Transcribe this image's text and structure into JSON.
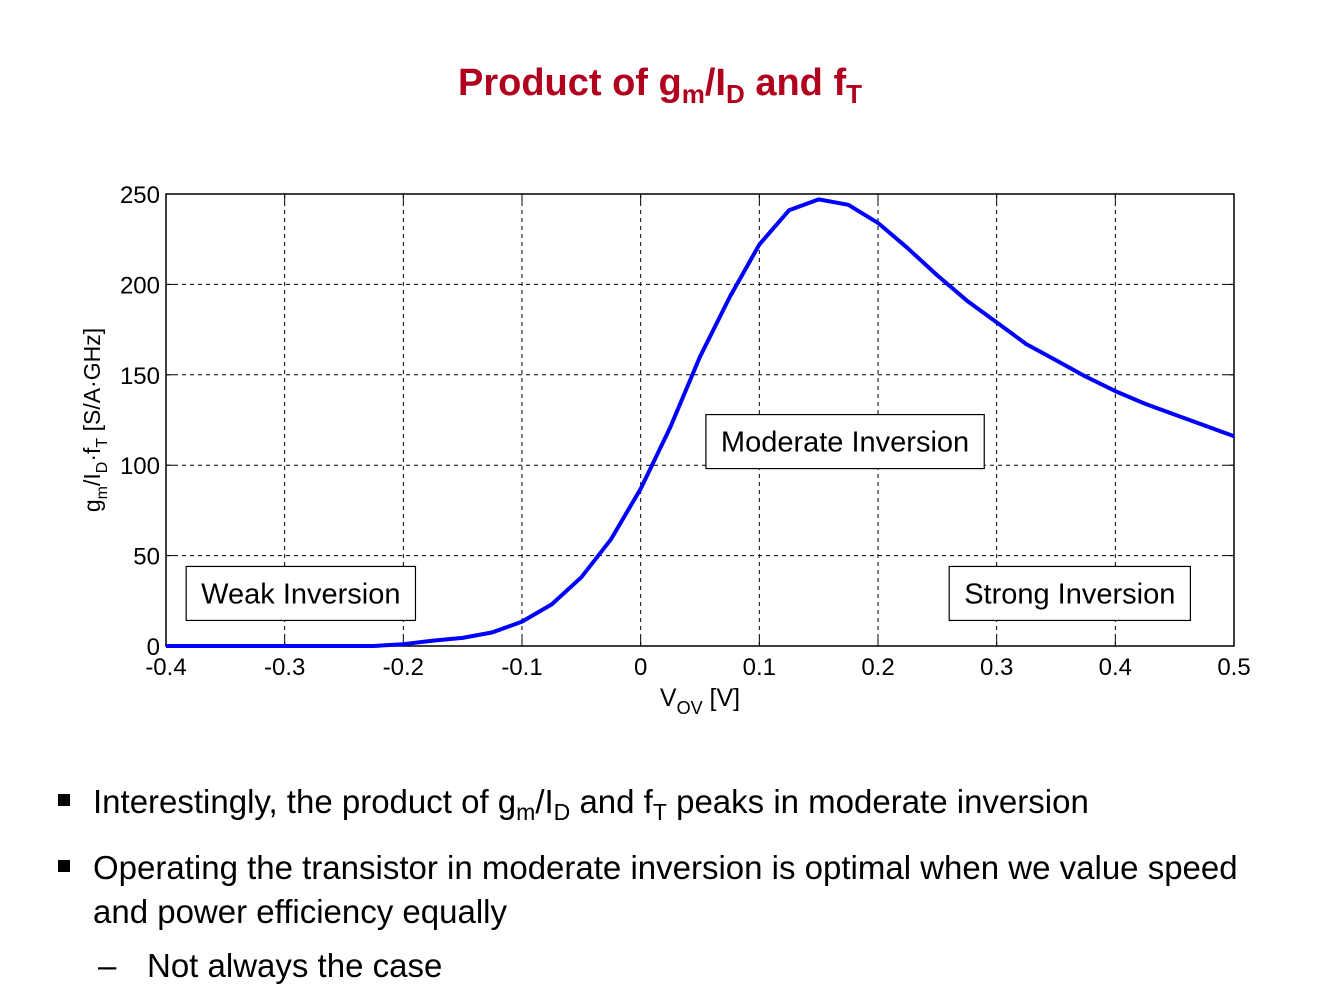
{
  "slide": {
    "title": {
      "prefix": "Product of g",
      "sub1": "m",
      "mid": "/I",
      "sub2": "D",
      "and": " and f",
      "sub3": "T"
    },
    "bullets": [
      {
        "t1": "Interestingly, the product of g",
        "s1": "m",
        "t2": "/I",
        "s2": "D",
        "t3": " and f",
        "s3": "T",
        "t4": " peaks in moderate inversion"
      },
      {
        "text": "Operating the transistor in moderate inversion is optimal when we value speed and power efficiency equally"
      }
    ],
    "sub_bullet": {
      "dash": "–",
      "text": "Not always the case"
    }
  },
  "chart_data": {
    "type": "line",
    "xlabel": "V_OV [V]",
    "ylabel": "g_m/I_D·f_T [S/A·GHz]",
    "xlim": [
      -0.4,
      0.5
    ],
    "ylim": [
      0,
      250
    ],
    "xticks": [
      -0.4,
      -0.3,
      -0.2,
      -0.1,
      0,
      0.1,
      0.2,
      0.3,
      0.4,
      0.5
    ],
    "xtick_labels": [
      "-0.4",
      "-0.3",
      "-0.2",
      "-0.1",
      "0",
      "0.1",
      "0.2",
      "0.3",
      "0.4",
      "0.5"
    ],
    "yticks": [
      0,
      50,
      100,
      150,
      200,
      250
    ],
    "ytick_labels": [
      "0",
      "50",
      "100",
      "150",
      "200",
      "250"
    ],
    "grid": true,
    "series": [
      {
        "name": "gm/ID·fT",
        "color": "#0000ff",
        "x": [
          -0.4,
          -0.3,
          -0.225,
          -0.2,
          -0.175,
          -0.15,
          -0.125,
          -0.1,
          -0.075,
          -0.05,
          -0.025,
          0,
          0.025,
          0.05,
          0.075,
          0.1,
          0.125,
          0.15,
          0.175,
          0.2,
          0.225,
          0.25,
          0.275,
          0.3,
          0.325,
          0.35,
          0.375,
          0.4,
          0.425,
          0.45,
          0.475,
          0.5
        ],
        "y": [
          0,
          0,
          0,
          1,
          3,
          4.5,
          7.5,
          13.5,
          23,
          38,
          59,
          87,
          121,
          160,
          193,
          222,
          241,
          247,
          244,
          234,
          220,
          205,
          191,
          179,
          167,
          158,
          149,
          141,
          134,
          128,
          122,
          116
        ]
      }
    ],
    "annotations": [
      {
        "text": "Weak Inversion",
        "x": -0.383,
        "y": 44
      },
      {
        "text": "Moderate Inversion",
        "x": 0.055,
        "y": 128
      },
      {
        "text": "Strong Inversion",
        "x": 0.26,
        "y": 44
      }
    ]
  }
}
